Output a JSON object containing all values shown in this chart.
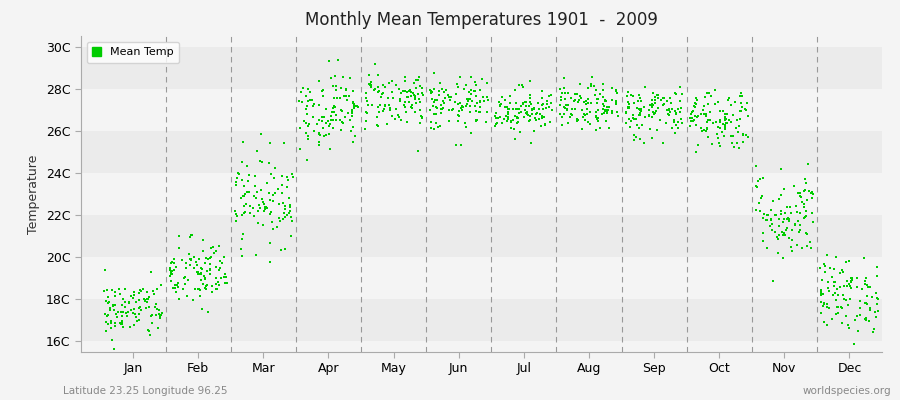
{
  "title": "Monthly Mean Temperatures 1901  -  2009",
  "ylabel": "Temperature",
  "xlabel_labels": [
    "Jan",
    "Feb",
    "Mar",
    "Apr",
    "May",
    "Jun",
    "Jul",
    "Aug",
    "Sep",
    "Oct",
    "Nov",
    "Dec"
  ],
  "bottom_left_text": "Latitude 23.25 Longitude 96.25",
  "bottom_right_text": "worldspecies.org",
  "legend_label": "Mean Temp",
  "dot_color": "#00cc00",
  "background_color": "#f4f4f4",
  "band_color_even": "#ebebeb",
  "band_color_odd": "#f4f4f4",
  "ytick_labels": [
    "16C",
    "18C",
    "20C",
    "22C",
    "24C",
    "26C",
    "28C",
    "30C"
  ],
  "ytick_values": [
    16,
    18,
    20,
    22,
    24,
    26,
    28,
    30
  ],
  "ylim": [
    15.5,
    30.5
  ],
  "n_years": 109,
  "monthly_means": [
    17.5,
    19.2,
    22.8,
    27.0,
    27.5,
    27.2,
    27.0,
    27.1,
    26.9,
    26.6,
    22.0,
    18.2
  ],
  "monthly_stds": [
    0.7,
    0.85,
    1.1,
    0.9,
    0.7,
    0.65,
    0.55,
    0.55,
    0.65,
    0.75,
    1.1,
    0.9
  ],
  "seed": 42
}
